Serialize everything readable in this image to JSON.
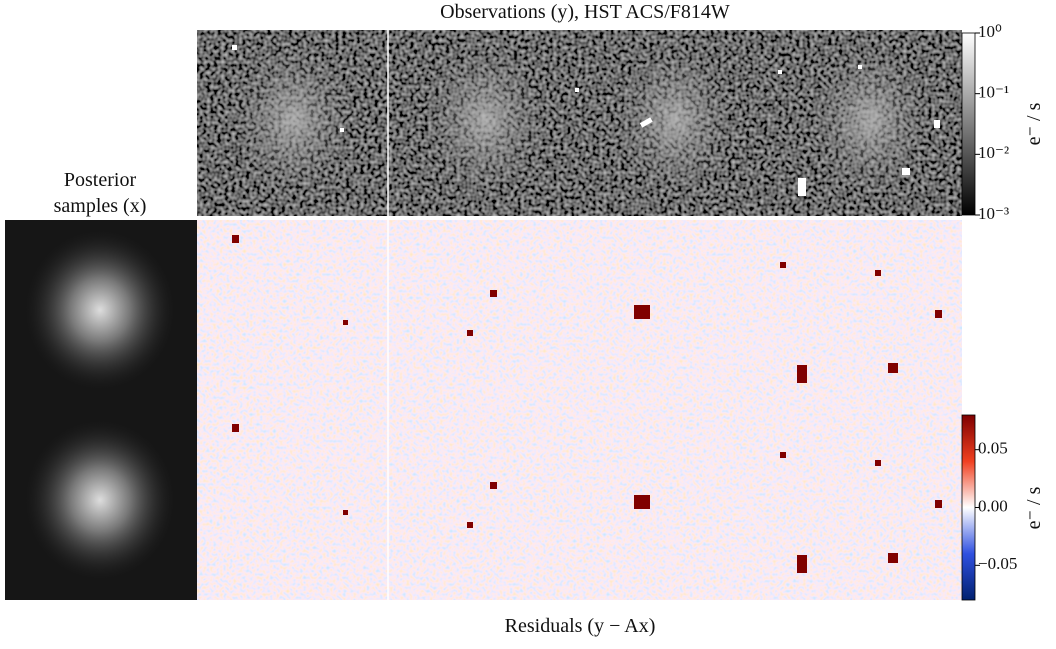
{
  "observations": {
    "title": "Observations (y), HST ACS/F814W",
    "colorbar": {
      "label": "e⁻ / s",
      "scale": "log",
      "lim": [
        0.001,
        1
      ],
      "ticks": [
        {
          "value": 1,
          "label": "10⁰"
        },
        {
          "value": 0.1,
          "label": "10⁻¹"
        },
        {
          "value": 0.01,
          "label": "10⁻²"
        },
        {
          "value": 0.001,
          "label": "10⁻³"
        }
      ]
    }
  },
  "posterior": {
    "title": [
      "Posterior",
      "samples (x)"
    ]
  },
  "residuals": {
    "title": "Residuals (y − Ax)",
    "colorbar": {
      "label": "e⁻ / s",
      "scale": "linear",
      "lim": [
        -0.08,
        0.08
      ],
      "ticks": [
        0.05,
        {
          "value": 0,
          "label": "0.00"
        },
        {
          "value": -0.05,
          "label": "−0.05"
        }
      ]
    }
  }
}
